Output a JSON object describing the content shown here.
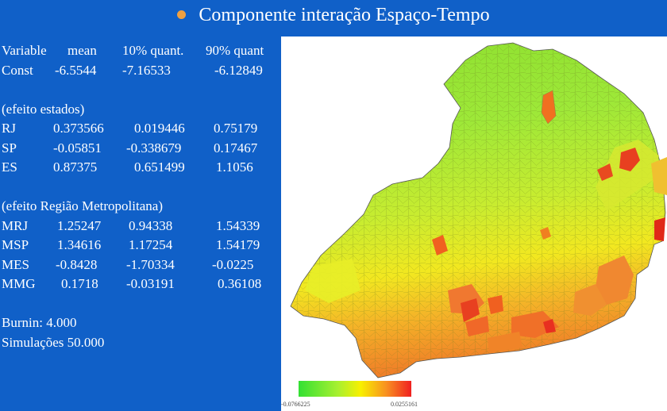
{
  "title": "Componente interação Espaço-Tempo",
  "header_row": [
    "Variable",
    "mean",
    "10% quant.",
    "90% quant"
  ],
  "const_row": [
    "Const",
    "-6.5544",
    "-7.16533",
    "-6.12849"
  ],
  "estados": {
    "label": "(efeito estados)",
    "rows": [
      [
        "RJ",
        "0.373566",
        "0.019446",
        "0.75179"
      ],
      [
        "SP",
        "-0.05851",
        "-0.338679",
        "0.17467"
      ],
      [
        "ES",
        "0.87375",
        "0.651499",
        "1.1056"
      ]
    ]
  },
  "metropolitana": {
    "label": "(efeito Região  Metropolitana)",
    "rows": [
      [
        "MRJ",
        "1.25247",
        "0.94338",
        "1.54339"
      ],
      [
        "MSP",
        "1.34616",
        "1.17254",
        "1.54179"
      ],
      [
        "MES",
        "-0.8428",
        "-1.70334",
        "-0.0225"
      ],
      [
        "MMG",
        "0.1718",
        "-0.03191",
        "0.36108"
      ]
    ]
  },
  "burnin": "Burnin: 4.000",
  "simulacoes": "Simulações  50.000",
  "legend": {
    "min": "-0.0766225",
    "max": "0.0255161"
  },
  "colors": {
    "background": "#1060c8",
    "bullet": "#f0a040",
    "low": "#33e033",
    "high": "#f02020"
  }
}
